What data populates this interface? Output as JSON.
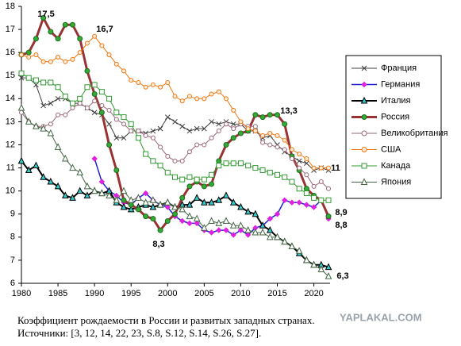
{
  "chart_data": {
    "type": "line",
    "x": [
      1980,
      1981,
      1982,
      1983,
      1984,
      1985,
      1986,
      1987,
      1988,
      1989,
      1990,
      1991,
      1992,
      1993,
      1994,
      1995,
      1996,
      1997,
      1998,
      1999,
      2000,
      2001,
      2002,
      2003,
      2004,
      2005,
      2006,
      2007,
      2008,
      2009,
      2010,
      2011,
      2012,
      2013,
      2014,
      2015,
      2016,
      2017,
      2018,
      2019,
      2020,
      2021,
      2022
    ],
    "xlim": [
      1980,
      2022
    ],
    "xticks": [
      1980,
      1985,
      1990,
      1995,
      2000,
      2005,
      2010,
      2015,
      2020
    ],
    "ylim": [
      6,
      18
    ],
    "yticks": [
      6,
      7,
      8,
      9,
      10,
      11,
      12,
      13,
      14,
      15,
      16,
      17,
      18
    ],
    "series": [
      {
        "name": "Франция",
        "color": "#404040",
        "marker": "x",
        "marker_color": "#404040",
        "marker_fill": "none",
        "line_width": 1,
        "values": [
          14.9,
          14.9,
          14.6,
          13.7,
          13.8,
          14.0,
          14.0,
          13.8,
          13.8,
          13.6,
          13.4,
          13.3,
          12.9,
          12.3,
          12.3,
          12.6,
          12.6,
          12.5,
          12.6,
          12.7,
          13.2,
          13.0,
          12.8,
          12.6,
          12.7,
          12.7,
          13.0,
          12.9,
          13.0,
          12.9,
          12.9,
          12.6,
          12.6,
          12.3,
          12.4,
          12.0,
          11.7,
          11.5,
          11.3,
          11.2,
          10.9,
          11.0,
          10.9
        ]
      },
      {
        "name": "Германия",
        "color": "#2020cc",
        "marker": "diamond",
        "marker_color": "#e020e0",
        "marker_fill": "#e020e0",
        "line_width": 1.5,
        "values": [
          null,
          null,
          null,
          null,
          null,
          null,
          null,
          null,
          null,
          null,
          11.4,
          10.4,
          10.0,
          9.8,
          9.5,
          9.4,
          9.7,
          9.9,
          9.6,
          9.4,
          9.3,
          8.9,
          8.7,
          8.6,
          8.6,
          8.3,
          8.2,
          8.3,
          8.3,
          8.1,
          8.3,
          8.1,
          8.4,
          8.5,
          8.8,
          9.0,
          9.6,
          9.5,
          9.5,
          9.4,
          9.3,
          9.6,
          8.8
        ]
      },
      {
        "name": "Италия",
        "color": "#000000",
        "marker": "triangle",
        "marker_color": "#000000",
        "marker_fill": "#33cccc",
        "line_width": 2,
        "values": [
          11.3,
          10.9,
          11.1,
          10.6,
          10.4,
          10.2,
          9.8,
          9.7,
          10.0,
          9.8,
          10.0,
          9.9,
          10.0,
          9.5,
          9.3,
          9.2,
          9.3,
          9.4,
          9.3,
          9.4,
          9.5,
          9.3,
          9.4,
          9.4,
          9.7,
          9.5,
          9.5,
          9.6,
          9.8,
          9.5,
          9.3,
          9.1,
          9.0,
          8.5,
          8.3,
          8.0,
          7.8,
          7.6,
          7.3,
          7.0,
          6.8,
          6.8,
          6.7
        ]
      },
      {
        "name": "Россия",
        "color": "#993333",
        "marker": "circle",
        "marker_color": "#1f6b1f",
        "marker_fill": "#33aa33",
        "line_width": 3,
        "values": [
          15.9,
          16.0,
          16.6,
          17.5,
          16.9,
          16.6,
          17.2,
          17.2,
          16.6,
          15.2,
          14.2,
          13.4,
          12.0,
          10.9,
          9.6,
          9.4,
          9.2,
          8.9,
          8.8,
          8.3,
          8.7,
          9.0,
          9.7,
          10.2,
          10.4,
          10.2,
          10.3,
          11.3,
          12.0,
          12.3,
          12.5,
          12.6,
          13.3,
          13.2,
          13.3,
          13.3,
          12.9,
          11.5,
          10.9,
          10.1,
          9.8,
          9.6,
          8.9
        ]
      },
      {
        "name": "Великобритания",
        "color": "#996677",
        "marker": "circle",
        "marker_color": "#996677",
        "marker_fill": "#ffffff",
        "line_width": 1,
        "values": [
          13.4,
          13.0,
          12.8,
          12.8,
          12.9,
          13.3,
          13.3,
          13.6,
          13.8,
          13.6,
          13.9,
          13.7,
          13.5,
          13.1,
          12.9,
          12.6,
          12.6,
          12.4,
          12.3,
          11.9,
          11.5,
          11.3,
          11.3,
          11.7,
          12.0,
          12.0,
          12.3,
          12.6,
          12.9,
          12.7,
          12.9,
          12.8,
          12.8,
          12.1,
          12.0,
          11.9,
          11.8,
          11.4,
          11.0,
          10.7,
          10.2,
          10.4,
          10.1
        ]
      },
      {
        "name": "США",
        "color": "#ee7711",
        "marker": "circle",
        "marker_color": "#ee7711",
        "marker_fill": "#ffeedd",
        "line_width": 1,
        "values": [
          15.9,
          15.8,
          15.9,
          15.6,
          15.6,
          15.8,
          15.6,
          15.7,
          16.0,
          16.4,
          16.7,
          16.3,
          15.9,
          15.5,
          15.2,
          14.8,
          14.7,
          14.5,
          14.6,
          14.5,
          14.7,
          14.1,
          13.9,
          14.1,
          14.0,
          14.0,
          14.2,
          14.3,
          14.0,
          13.5,
          13.0,
          12.7,
          12.6,
          12.4,
          12.5,
          12.4,
          12.2,
          11.8,
          11.6,
          11.4,
          11.0,
          11.0,
          11.0
        ]
      },
      {
        "name": "Канада",
        "color": "#339933",
        "marker": "square",
        "marker_color": "#339933",
        "marker_fill": "#ffffff",
        "line_width": 1,
        "values": [
          15.1,
          14.9,
          14.8,
          14.7,
          14.7,
          14.5,
          14.1,
          13.8,
          14.0,
          14.5,
          14.6,
          14.3,
          14.0,
          13.4,
          13.2,
          12.9,
          12.3,
          11.6,
          11.3,
          11.1,
          10.8,
          10.6,
          10.5,
          10.6,
          10.5,
          10.5,
          10.7,
          11.1,
          11.2,
          11.2,
          11.2,
          11.1,
          11.0,
          10.9,
          10.8,
          10.7,
          10.6,
          10.4,
          10.1,
          9.9,
          9.7,
          9.6,
          9.6
        ]
      },
      {
        "name": "Япония",
        "color": "#446644",
        "marker": "triangle",
        "marker_color": "#446644",
        "marker_fill": "#ffffff",
        "line_width": 1,
        "values": [
          13.6,
          13.0,
          12.8,
          12.7,
          12.5,
          11.9,
          11.4,
          11.0,
          10.8,
          10.2,
          10.0,
          9.9,
          9.8,
          9.6,
          10.0,
          9.6,
          9.7,
          9.5,
          9.6,
          9.4,
          9.5,
          9.3,
          9.2,
          8.9,
          8.8,
          8.4,
          8.7,
          8.6,
          8.7,
          8.5,
          8.5,
          8.3,
          8.2,
          8.2,
          8.0,
          8.0,
          7.8,
          7.6,
          7.4,
          7.0,
          6.8,
          6.6,
          6.3
        ]
      }
    ],
    "annotations": [
      "17,5",
      "16,7",
      "13,3",
      "11",
      "8,9",
      "8,8",
      "8,3",
      "6,3"
    ],
    "caption": [
      "Коэффициент рождаемости в России и развитых западных странах.",
      "Источники: [3, 12, 14, 22, 23, S.8, S.12, S.14, S.26, S.27]."
    ],
    "watermark": "YAPLAKAL.COM"
  }
}
